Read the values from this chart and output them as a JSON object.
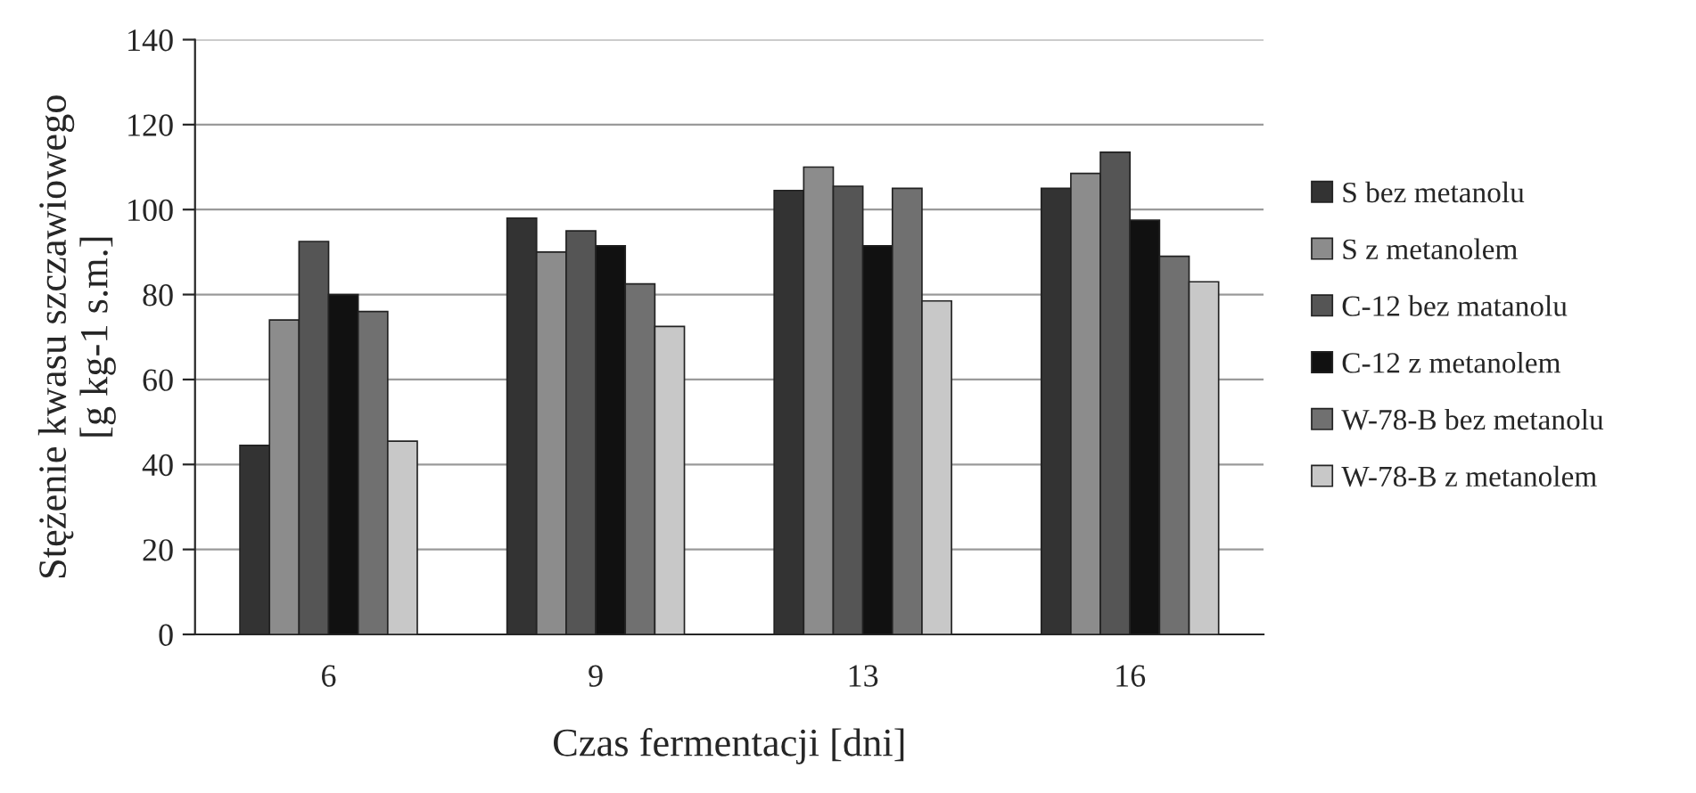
{
  "chart_data": {
    "type": "bar",
    "xlabel": "Czas fermentacji [dni]",
    "ylabel": "Stężenie kwasu szczawiowego\n[g kg-1 s.m.]",
    "categories": [
      "6",
      "9",
      "13",
      "16"
    ],
    "series": [
      {
        "name": "S bez metanolu",
        "color": "#333333",
        "values": [
          44.5,
          98,
          104.5,
          105
        ]
      },
      {
        "name": "S z metanolem",
        "color": "#8c8c8c",
        "values": [
          74,
          90,
          110,
          108.5
        ]
      },
      {
        "name": "C-12 bez matanolu",
        "color": "#555555",
        "values": [
          92.5,
          95,
          105.5,
          113.5
        ]
      },
      {
        "name": "C-12 z metanolem",
        "color": "#111111",
        "values": [
          80,
          91.5,
          91.5,
          97.5
        ]
      },
      {
        "name": "W-78-B bez metanolu",
        "color": "#707070",
        "values": [
          76,
          82.5,
          105,
          89
        ]
      },
      {
        "name": "W-78-B z metanolem",
        "color": "#c8c8c8",
        "values": [
          45.5,
          72.5,
          78.5,
          83
        ]
      }
    ],
    "ylim": [
      0,
      140
    ],
    "yticks": [
      0,
      20,
      40,
      60,
      80,
      100,
      120,
      140
    ],
    "grid": "y",
    "legend": "right"
  }
}
